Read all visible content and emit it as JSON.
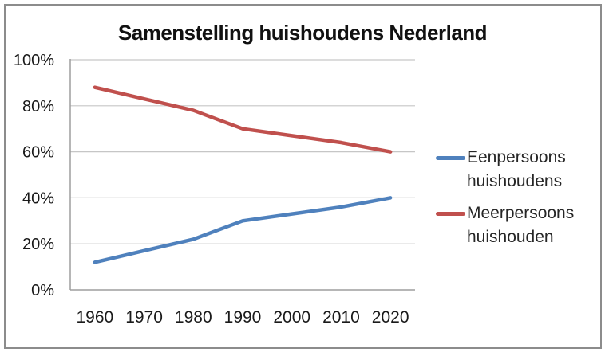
{
  "chart": {
    "title": "Samenstelling huishoudens Nederland"
  },
  "legend": {
    "entries": [
      {
        "name": "Eenpersoons huishoudens",
        "lines": [
          "Eenpersoons",
          "huishoudens"
        ],
        "color": "#4F81BD"
      },
      {
        "name": "Meerpersoons huishouden",
        "lines": [
          "Meerpersoons",
          "huishouden"
        ],
        "color": "#C0504D"
      }
    ]
  },
  "chart_data": {
    "type": "line",
    "title": "Samenstelling huishoudens Nederland",
    "categories": [
      "1960",
      "1970",
      "1980",
      "1990",
      "2000",
      "2010",
      "2020"
    ],
    "series": [
      {
        "name": "Eenpersoons huishoudens",
        "color": "#4F81BD",
        "values": [
          12,
          17,
          22,
          30,
          33,
          36,
          40
        ]
      },
      {
        "name": "Meerpersoons huishouden",
        "color": "#C0504D",
        "values": [
          88,
          83,
          78,
          70,
          67,
          64,
          60
        ]
      }
    ],
    "xlabel": "",
    "ylabel": "",
    "ylim": [
      0,
      100
    ],
    "yticks": [
      0,
      20,
      40,
      60,
      80,
      100
    ],
    "ytick_labels": [
      "0%",
      "20%",
      "40%",
      "60%",
      "80%",
      "100%"
    ],
    "grid": "horizontal",
    "legend_position": "right"
  },
  "colors": {
    "grid": "#c6c6c6",
    "axis": "#9d9d9d",
    "border": "#8c8c8c",
    "tick_text": "#1a1a1a",
    "title_text": "#111111",
    "legend_text": "#262626"
  }
}
